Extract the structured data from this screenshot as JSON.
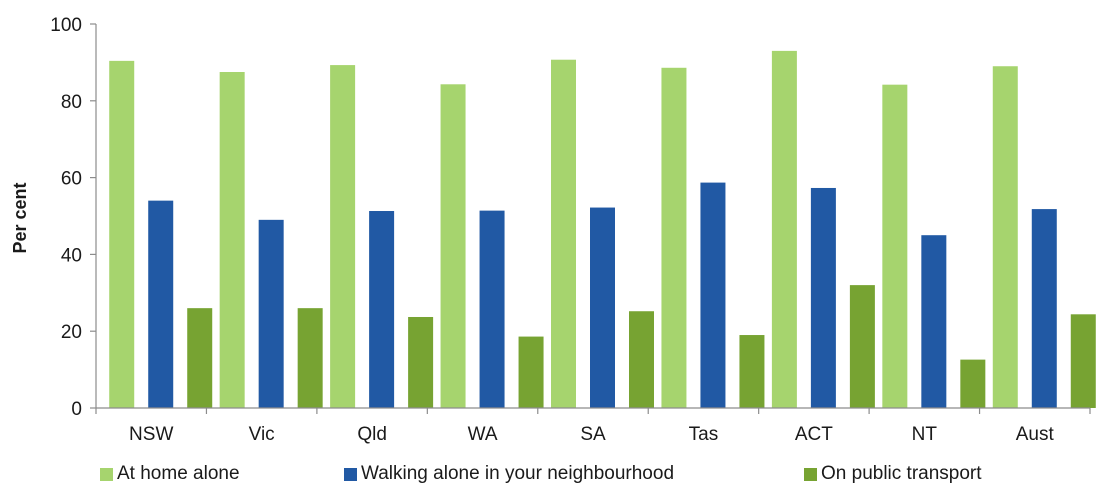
{
  "chart_data": {
    "type": "bar",
    "title": "",
    "xlabel": "",
    "ylabel": "Per cent",
    "ylim": [
      0,
      100
    ],
    "yticks": [
      0,
      20,
      40,
      60,
      80,
      100
    ],
    "grid": false,
    "legend_position": "bottom",
    "categories": [
      "NSW",
      "Vic",
      "Qld",
      "WA",
      "SA",
      "Tas",
      "ACT",
      "NT",
      "Aust"
    ],
    "series": [
      {
        "name": "At home alone",
        "color": "#a6d46e",
        "values": [
          90.4,
          87.5,
          89.3,
          84.3,
          90.7,
          88.6,
          93.0,
          84.2,
          89.0
        ]
      },
      {
        "name": "Walking alone in your neighbourhood",
        "color": "#2159a4",
        "values": [
          54.0,
          49.0,
          51.3,
          51.4,
          52.2,
          58.7,
          57.3,
          45.0,
          51.8
        ]
      },
      {
        "name": "On public transport",
        "color": "#77a332",
        "values": [
          26.0,
          26.0,
          23.7,
          18.6,
          25.2,
          19.0,
          32.0,
          12.6,
          24.4
        ]
      }
    ]
  }
}
